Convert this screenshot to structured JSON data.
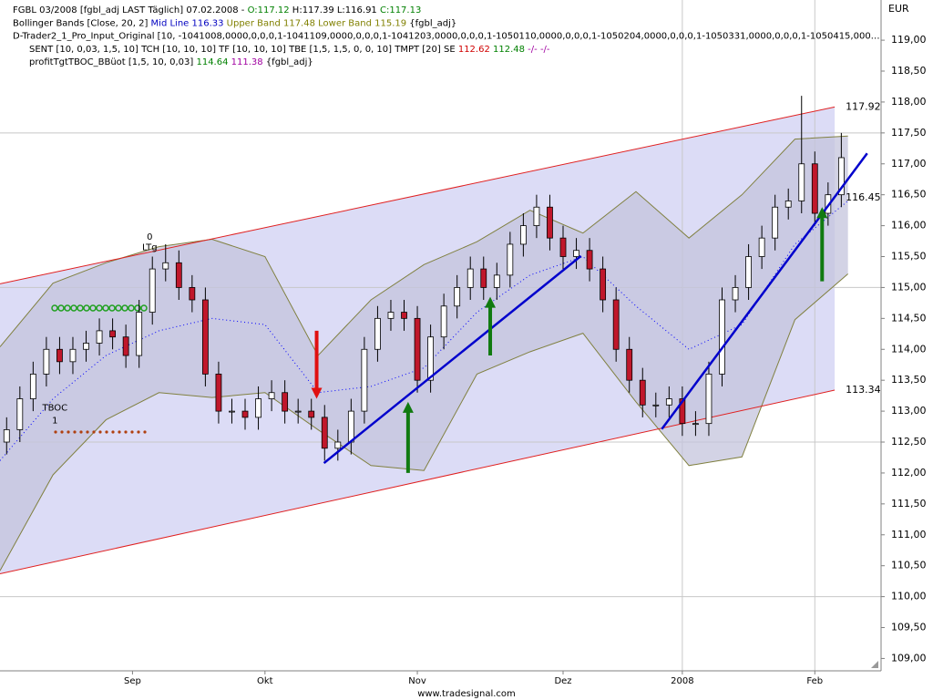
{
  "chart_data": {
    "type": "candlestick",
    "legend_lines": [
      [
        {
          "text": "FGBL 03/2008 [fgbl_adj LAST Täglich] 07.02.2008 - ",
          "color": "#000000"
        },
        {
          "text": "O:117.12",
          "color": "#008000"
        },
        {
          "text": " H:117.39 L:116.91 ",
          "color": "#000000"
        },
        {
          "text": "C:117.13",
          "color": "#008000"
        }
      ],
      [
        {
          "text": "Bollinger Bands [Close, 20, 2] ",
          "color": "#000000"
        },
        {
          "text": "Mid Line 116.33",
          "color": "#0000c0"
        },
        {
          "text": " Upper Band 117.48",
          "color": "#808000"
        },
        {
          "text": " Lower Band 115.19",
          "color": "#808000"
        },
        {
          "text": " {fgbl_adj}",
          "color": "#000000"
        }
      ],
      [
        {
          "text": "D-Trader2_1_Pro_Input_Original [10, -1041008,0000,0,0,0,1-1041109,0000,0,0,0,1-1041203,0000,0,0,0,1-1050110,0000,0,0,0,1-1050204,0000,0,0,0,1-1050331,0000,0,0,0,1-1050415,000…",
          "color": "#000000"
        }
      ],
      [
        {
          "text": "SENT [10, 0,03, 1,5, 10]   TCH [10, 10, 10]   TF [10, 10, 10]   TBE [1,5, 1,5, 0, 0, 10]   TMPT [20]   SE ",
          "color": "#000000"
        },
        {
          "text": "112.62",
          "color": "#d00000"
        },
        {
          "text": " 112.48",
          "color": "#008000"
        },
        {
          "text": " -/- -/-",
          "color": "#a000a0"
        }
      ],
      [
        {
          "text": "profitTgtTBOC_BBüot [1,5, 10, 0,03] ",
          "color": "#000000"
        },
        {
          "text": "114.64",
          "color": "#008000"
        },
        {
          "text": " 111.38",
          "color": "#a000a0"
        },
        {
          "text": " {fgbl_adj}",
          "color": "#000000"
        }
      ]
    ],
    "currency": "EUR",
    "watermark": "www.tradesignal.com",
    "xlim": [
      0,
      133
    ],
    "xticks": [
      {
        "value": 20,
        "label": "Sep"
      },
      {
        "value": 40,
        "label": "Okt"
      },
      {
        "value": 63,
        "label": "Nov"
      },
      {
        "value": 85,
        "label": "Dez"
      },
      {
        "value": 103,
        "label": "2008"
      },
      {
        "value": 123,
        "label": "Feb"
      }
    ],
    "ylim": [
      108.8,
      119.65
    ],
    "yticks": [
      {
        "value": 109,
        "label": "109,00"
      },
      {
        "value": 109.5,
        "label": "109,50"
      },
      {
        "value": 110,
        "label": "110,00"
      },
      {
        "value": 110.5,
        "label": "110,50"
      },
      {
        "value": 111,
        "label": "111,00"
      },
      {
        "value": 111.5,
        "label": "111,50"
      },
      {
        "value": 112,
        "label": "112,00"
      },
      {
        "value": 112.5,
        "label": "112,50"
      },
      {
        "value": 113,
        "label": "113,00"
      },
      {
        "value": 113.5,
        "label": "113,50"
      },
      {
        "value": 114,
        "label": "114,00"
      },
      {
        "value": 114.5,
        "label": "114,50"
      },
      {
        "value": 115,
        "label": "115,00"
      },
      {
        "value": 115.5,
        "label": "115,50"
      },
      {
        "value": 116,
        "label": "116,00"
      },
      {
        "value": 116.5,
        "label": "116,50"
      },
      {
        "value": 117,
        "label": "117,00"
      },
      {
        "value": 117.5,
        "label": "117,50"
      },
      {
        "value": 118,
        "label": "118,00"
      },
      {
        "value": 118.5,
        "label": "118,50"
      },
      {
        "value": 119,
        "label": "119,00"
      }
    ],
    "candles": {
      "up_color": "#ffffff",
      "down_color": "#c0172b",
      "x": [
        1,
        3,
        5,
        7,
        9,
        11,
        13,
        15,
        17,
        19,
        21,
        23,
        25,
        27,
        29,
        31,
        33,
        35,
        37,
        39,
        41,
        43,
        45,
        47,
        49,
        51,
        53,
        55,
        57,
        59,
        61,
        63,
        65,
        67,
        69,
        71,
        73,
        75,
        77,
        79,
        81,
        83,
        85,
        87,
        89,
        91,
        93,
        95,
        97,
        99,
        101,
        103,
        105,
        107,
        109,
        111,
        113,
        115,
        117,
        119,
        121,
        123,
        125,
        127
      ],
      "open": [
        112.5,
        112.7,
        113.2,
        113.6,
        114.0,
        113.8,
        114.0,
        114.1,
        114.3,
        114.2,
        113.9,
        114.6,
        115.3,
        115.4,
        115.0,
        114.8,
        113.6,
        113.0,
        113.0,
        112.9,
        113.2,
        113.3,
        113.0,
        113.0,
        112.9,
        112.4,
        112.5,
        113.0,
        114.0,
        114.5,
        114.6,
        114.5,
        113.5,
        114.2,
        114.7,
        115.0,
        115.3,
        115.0,
        115.2,
        115.7,
        116.0,
        116.3,
        115.8,
        115.5,
        115.6,
        115.3,
        114.8,
        114.0,
        113.5,
        113.1,
        113.1,
        113.2,
        112.8,
        112.8,
        113.6,
        114.8,
        115.0,
        115.5,
        115.8,
        116.3,
        116.4,
        117.0,
        116.2,
        116.5
      ],
      "high": [
        112.9,
        113.4,
        113.8,
        114.2,
        114.2,
        114.2,
        114.3,
        114.5,
        114.5,
        114.4,
        114.8,
        115.5,
        115.7,
        115.6,
        115.2,
        115.0,
        113.8,
        113.2,
        113.2,
        113.4,
        113.5,
        113.5,
        113.2,
        113.2,
        113.1,
        112.7,
        113.2,
        114.2,
        114.7,
        114.8,
        114.8,
        114.7,
        114.4,
        114.9,
        115.2,
        115.5,
        115.5,
        115.4,
        115.9,
        116.2,
        116.5,
        116.5,
        116.0,
        115.8,
        115.8,
        115.5,
        115.0,
        114.2,
        113.7,
        113.3,
        113.4,
        113.4,
        113.0,
        113.8,
        115.0,
        115.2,
        115.7,
        116.0,
        116.5,
        116.6,
        118.1,
        117.2,
        116.7,
        117.5
      ],
      "low": [
        112.3,
        112.5,
        113.0,
        113.4,
        113.6,
        113.6,
        113.8,
        113.9,
        114.0,
        113.7,
        113.7,
        114.4,
        115.1,
        114.8,
        114.6,
        113.4,
        112.8,
        112.8,
        112.7,
        112.7,
        113.0,
        112.8,
        112.8,
        112.7,
        112.2,
        112.2,
        112.3,
        112.8,
        113.8,
        114.3,
        114.3,
        113.3,
        113.3,
        114.0,
        114.5,
        114.8,
        114.8,
        114.8,
        115.0,
        115.5,
        115.8,
        115.6,
        115.3,
        115.3,
        115.1,
        114.6,
        113.8,
        113.3,
        112.9,
        112.9,
        112.9,
        112.6,
        112.6,
        112.6,
        113.4,
        114.6,
        114.8,
        115.3,
        115.6,
        116.1,
        116.2,
        116.0,
        116.0,
        116.3
      ],
      "close": [
        112.7,
        113.2,
        113.6,
        114.0,
        113.8,
        114.0,
        114.1,
        114.3,
        114.2,
        113.9,
        114.6,
        115.3,
        115.4,
        115.0,
        114.8,
        113.6,
        113.0,
        113.0,
        112.9,
        113.2,
        113.3,
        113.0,
        113.0,
        112.9,
        112.4,
        112.5,
        113.0,
        114.0,
        114.5,
        114.6,
        114.5,
        113.5,
        114.2,
        114.7,
        115.0,
        115.3,
        115.0,
        115.2,
        115.7,
        116.0,
        116.3,
        115.8,
        115.5,
        115.6,
        115.3,
        114.8,
        114.0,
        113.5,
        113.1,
        113.1,
        113.2,
        112.8,
        112.8,
        113.6,
        114.8,
        115.0,
        115.5,
        115.8,
        116.3,
        116.4,
        117.0,
        116.2,
        116.5,
        117.1
      ]
    },
    "bands": {
      "x": [
        0,
        8,
        16,
        24,
        32,
        40,
        48,
        56,
        64,
        72,
        80,
        88,
        96,
        104,
        112,
        120,
        128
      ],
      "upper": [
        114.04,
        115.07,
        115.4,
        115.66,
        115.78,
        115.5,
        113.9,
        114.8,
        115.37,
        115.74,
        116.25,
        115.88,
        116.55,
        115.8,
        116.5,
        117.4,
        117.45
      ],
      "mid": [
        112.2,
        113.2,
        113.9,
        114.3,
        114.5,
        114.4,
        113.3,
        113.4,
        113.7,
        114.6,
        115.2,
        115.5,
        114.7,
        114.0,
        114.4,
        115.7,
        116.4
      ],
      "lower": [
        110.42,
        111.97,
        112.86,
        113.3,
        113.22,
        113.3,
        112.7,
        112.12,
        112.04,
        113.6,
        113.96,
        114.26,
        113.15,
        112.12,
        112.26,
        114.48,
        115.22
      ],
      "band_color": "#808040",
      "fill": "#c4c4dc",
      "mid_color": "#0000ff"
    },
    "channel": {
      "x": [
        0,
        126
      ],
      "upper": [
        115.06,
        117.92
      ],
      "lower": [
        110.37,
        113.34
      ],
      "mid_label": 116.45,
      "color": "#e02020",
      "fill": "#dcdcf6",
      "label_color": "#d00000",
      "mid_label_color": "#0000c0"
    },
    "trendlines": [
      {
        "x": [
          48.9,
          87.7
        ],
        "y": [
          112.16,
          115.51
        ]
      },
      {
        "x": [
          99.9,
          130.9
        ],
        "y": [
          112.71,
          117.17
        ]
      }
    ],
    "trend_color": "#0000cc",
    "arrows": [
      {
        "x": 47.8,
        "from": 114.3,
        "to": 113.2,
        "color": "#e01010"
      },
      {
        "x": 61.6,
        "from": 112.0,
        "to": 113.15,
        "color": "#107a10"
      },
      {
        "x": 74.0,
        "from": 113.9,
        "to": 114.85,
        "color": "#107a10"
      },
      {
        "x": 124.1,
        "from": 115.1,
        "to": 116.3,
        "color": "#107a10"
      }
    ],
    "annotations": [
      {
        "text": "0",
        "x": 22.6,
        "y": 115.82
      },
      {
        "text": "LTg",
        "x": 22.6,
        "y": 115.65
      },
      {
        "text": "TBOC",
        "x": 8.3,
        "y": 113.05
      },
      {
        "text": "1",
        "x": 8.3,
        "y": 112.85
      }
    ]
  }
}
